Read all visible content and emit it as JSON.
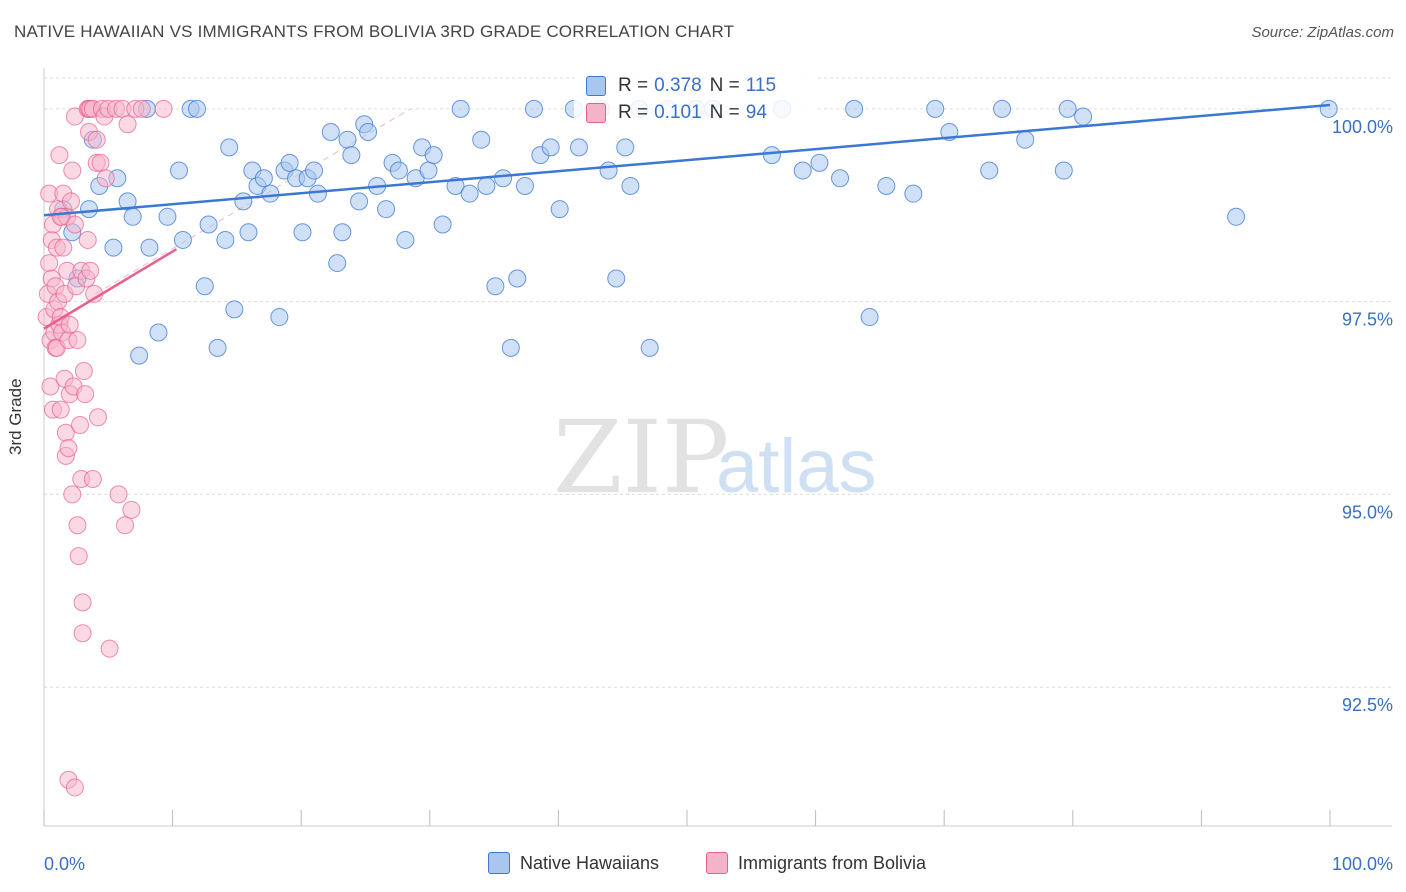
{
  "header": {
    "title": "NATIVE HAWAIIAN VS IMMIGRANTS FROM BOLIVIA 3RD GRADE CORRELATION CHART",
    "source": "Source: ZipAtlas.com"
  },
  "watermark": {
    "zip": "ZIP",
    "atlas": "atlas"
  },
  "colors": {
    "blue": "#3a78d4",
    "blue_fill": "#a9c6ee",
    "pink": "#e8608e",
    "pink_fill": "#f5b3c9",
    "tick_label": "#3a6fc4",
    "grid": "#dcdcdc"
  },
  "stats": {
    "r_label": "R =",
    "n_label": "N =",
    "series1": {
      "r": "0.378",
      "n": "115"
    },
    "series2": {
      "r": "0.101",
      "n": "94"
    }
  },
  "chart_data": {
    "type": "scatter",
    "title": "NATIVE HAWAIIAN VS IMMIGRANTS FROM BOLIVIA 3RD GRADE CORRELATION CHART",
    "xlabel": "",
    "ylabel": "3rd Grade",
    "xlim": [
      0,
      100
    ],
    "ylim": [
      90.7,
      100.4
    ],
    "x_tick_labels": [
      "0.0%",
      "100.0%"
    ],
    "y_ticks": [
      100.0,
      97.5,
      95.0,
      92.5
    ],
    "y_tick_labels": [
      "100.0%",
      "97.5%",
      "95.0%",
      "92.5%"
    ],
    "grid": true,
    "legend_position": "bottom",
    "series": [
      {
        "name": "Native Hawaiians",
        "color": "#3a78d4",
        "r": 0.378,
        "n": 115,
        "trend": {
          "x": [
            0,
            100
          ],
          "y": [
            98.62,
            100.05
          ]
        },
        "points": [
          [
            1.5,
            98.7
          ],
          [
            2.2,
            98.4
          ],
          [
            2.6,
            97.8
          ],
          [
            3.5,
            98.7
          ],
          [
            3.8,
            99.6
          ],
          [
            4.3,
            99.0
          ],
          [
            5.4,
            98.2
          ],
          [
            5.7,
            99.1
          ],
          [
            6.5,
            98.8
          ],
          [
            6.9,
            98.6
          ],
          [
            7.4,
            96.8
          ],
          [
            8.0,
            100.0
          ],
          [
            8.2,
            98.2
          ],
          [
            8.9,
            97.1
          ],
          [
            9.6,
            98.6
          ],
          [
            10.5,
            99.2
          ],
          [
            10.8,
            98.3
          ],
          [
            11.4,
            100.0
          ],
          [
            11.9,
            100.0
          ],
          [
            12.5,
            97.7
          ],
          [
            12.8,
            98.5
          ],
          [
            13.5,
            96.9
          ],
          [
            14.1,
            98.3
          ],
          [
            14.4,
            99.5
          ],
          [
            14.8,
            97.4
          ],
          [
            15.5,
            98.8
          ],
          [
            15.9,
            98.4
          ],
          [
            16.2,
            99.2
          ],
          [
            16.6,
            99.0
          ],
          [
            17.1,
            99.1
          ],
          [
            17.6,
            98.9
          ],
          [
            18.3,
            97.3
          ],
          [
            18.7,
            99.2
          ],
          [
            19.1,
            99.3
          ],
          [
            19.6,
            99.1
          ],
          [
            20.1,
            98.4
          ],
          [
            20.5,
            99.1
          ],
          [
            21.0,
            99.2
          ],
          [
            21.3,
            98.9
          ],
          [
            22.3,
            99.7
          ],
          [
            22.8,
            98.0
          ],
          [
            23.2,
            98.4
          ],
          [
            23.6,
            99.6
          ],
          [
            23.9,
            99.4
          ],
          [
            24.5,
            98.8
          ],
          [
            24.9,
            99.8
          ],
          [
            25.2,
            99.7
          ],
          [
            25.9,
            99.0
          ],
          [
            26.6,
            98.7
          ],
          [
            27.1,
            99.3
          ],
          [
            27.6,
            99.2
          ],
          [
            28.1,
            98.3
          ],
          [
            28.9,
            99.1
          ],
          [
            29.4,
            99.5
          ],
          [
            29.9,
            99.2
          ],
          [
            30.3,
            99.4
          ],
          [
            31.0,
            98.5
          ],
          [
            32.0,
            99.0
          ],
          [
            32.4,
            100.0
          ],
          [
            33.1,
            98.9
          ],
          [
            34.0,
            99.6
          ],
          [
            34.4,
            99.0
          ],
          [
            35.1,
            97.7
          ],
          [
            35.7,
            99.1
          ],
          [
            36.3,
            96.9
          ],
          [
            36.8,
            97.8
          ],
          [
            37.4,
            99.0
          ],
          [
            38.1,
            100.0
          ],
          [
            38.6,
            99.4
          ],
          [
            39.4,
            99.5
          ],
          [
            40.1,
            98.7
          ],
          [
            41.2,
            100.0
          ],
          [
            41.6,
            99.5
          ],
          [
            43.3,
            100.0
          ],
          [
            43.9,
            99.2
          ],
          [
            44.5,
            97.8
          ],
          [
            45.2,
            99.5
          ],
          [
            45.6,
            99.0
          ],
          [
            46.3,
            100.0
          ],
          [
            47.1,
            96.9
          ],
          [
            48.5,
            100.0
          ],
          [
            50.7,
            100.0
          ],
          [
            52.0,
            100.0
          ],
          [
            56.6,
            99.4
          ],
          [
            57.4,
            100.0
          ],
          [
            59.0,
            99.2
          ],
          [
            60.3,
            99.3
          ],
          [
            61.9,
            99.1
          ],
          [
            63.0,
            100.0
          ],
          [
            64.2,
            97.3
          ],
          [
            65.5,
            99.0
          ],
          [
            67.6,
            98.9
          ],
          [
            69.3,
            100.0
          ],
          [
            70.4,
            99.7
          ],
          [
            73.5,
            99.2
          ],
          [
            74.5,
            100.0
          ],
          [
            76.3,
            99.6
          ],
          [
            79.3,
            99.2
          ],
          [
            79.6,
            100.0
          ],
          [
            80.8,
            99.9
          ],
          [
            92.7,
            98.6
          ],
          [
            99.9,
            100.0
          ]
        ]
      },
      {
        "name": "Immigrants from Bolivia",
        "color": "#e8608e",
        "r": 0.101,
        "n": 94,
        "trend": {
          "x": [
            0,
            10.3
          ],
          "y": [
            97.15,
            98.18
          ]
        },
        "points": [
          [
            0.2,
            97.3
          ],
          [
            0.3,
            97.6
          ],
          [
            0.4,
            98.0
          ],
          [
            0.4,
            98.9
          ],
          [
            0.5,
            96.4
          ],
          [
            0.5,
            97.0
          ],
          [
            0.6,
            97.8
          ],
          [
            0.6,
            98.3
          ],
          [
            0.7,
            98.5
          ],
          [
            0.7,
            96.1
          ],
          [
            0.8,
            97.4
          ],
          [
            0.8,
            97.1
          ],
          [
            0.9,
            96.9
          ],
          [
            0.9,
            97.7
          ],
          [
            1.0,
            98.2
          ],
          [
            1.0,
            96.9
          ],
          [
            1.1,
            97.5
          ],
          [
            1.1,
            98.7
          ],
          [
            1.2,
            97.2
          ],
          [
            1.2,
            99.4
          ],
          [
            1.3,
            97.3
          ],
          [
            1.3,
            96.1
          ],
          [
            1.4,
            98.6
          ],
          [
            1.4,
            97.1
          ],
          [
            1.5,
            98.9
          ],
          [
            1.5,
            98.2
          ],
          [
            1.6,
            96.5
          ],
          [
            1.6,
            97.6
          ],
          [
            1.7,
            95.8
          ],
          [
            1.7,
            95.5
          ],
          [
            1.8,
            98.6
          ],
          [
            1.8,
            97.9
          ],
          [
            1.9,
            97.0
          ],
          [
            1.9,
            95.6
          ],
          [
            2.0,
            96.3
          ],
          [
            2.0,
            97.2
          ],
          [
            2.1,
            98.8
          ],
          [
            2.2,
            99.2
          ],
          [
            2.2,
            95.0
          ],
          [
            2.3,
            96.4
          ],
          [
            2.4,
            98.5
          ],
          [
            2.4,
            99.9
          ],
          [
            2.5,
            97.7
          ],
          [
            2.6,
            97.0
          ],
          [
            2.6,
            94.6
          ],
          [
            2.7,
            94.2
          ],
          [
            2.8,
            95.9
          ],
          [
            2.9,
            97.9
          ],
          [
            2.9,
            95.2
          ],
          [
            3.0,
            93.6
          ],
          [
            3.0,
            93.2
          ],
          [
            3.1,
            96.6
          ],
          [
            3.2,
            96.3
          ],
          [
            3.3,
            97.8
          ],
          [
            3.4,
            98.3
          ],
          [
            3.4,
            100.0
          ],
          [
            3.5,
            100.0
          ],
          [
            3.5,
            99.7
          ],
          [
            3.6,
            97.9
          ],
          [
            3.6,
            100.0
          ],
          [
            3.8,
            100.0
          ],
          [
            3.8,
            95.2
          ],
          [
            3.9,
            97.6
          ],
          [
            4.1,
            99.6
          ],
          [
            4.1,
            99.3
          ],
          [
            4.2,
            96.0
          ],
          [
            4.4,
            99.3
          ],
          [
            4.5,
            100.0
          ],
          [
            4.7,
            99.9
          ],
          [
            4.8,
            99.1
          ],
          [
            5.0,
            100.0
          ],
          [
            5.1,
            93.0
          ],
          [
            5.6,
            100.0
          ],
          [
            5.8,
            95.0
          ],
          [
            6.1,
            100.0
          ],
          [
            6.3,
            94.6
          ],
          [
            6.5,
            99.8
          ],
          [
            6.8,
            94.8
          ],
          [
            7.1,
            100.0
          ],
          [
            7.6,
            100.0
          ],
          [
            9.3,
            100.0
          ],
          [
            1.9,
            91.3
          ],
          [
            2.4,
            91.2
          ],
          [
            1.3,
            98.6
          ]
        ]
      }
    ]
  },
  "legend": {
    "items": [
      "Native Hawaiians",
      "Immigrants from Bolivia"
    ]
  }
}
